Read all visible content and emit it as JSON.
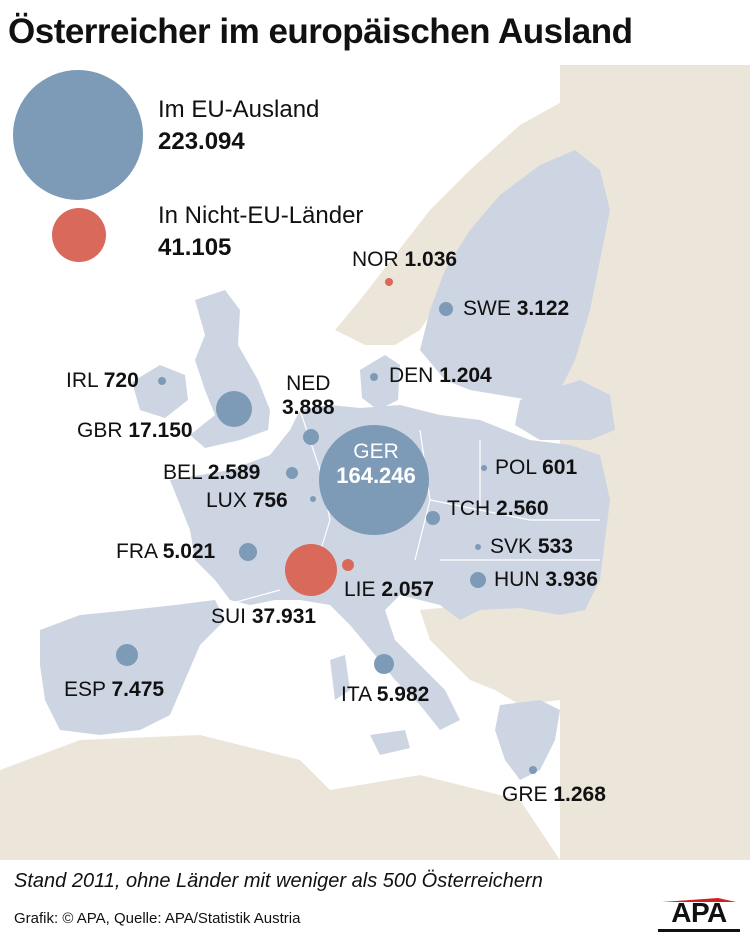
{
  "title": "Österreicher im europäischen Ausland",
  "legend": {
    "eu": {
      "label": "Im EU-Ausland",
      "value": "223.094",
      "color": "#7d9bb7"
    },
    "non_eu": {
      "label": "In Nicht-EU-Länder",
      "value": "41.105",
      "color": "#d9695a"
    }
  },
  "countries": [
    {
      "code": "NOR",
      "value": "1.036",
      "group": "non_eu"
    },
    {
      "code": "SWE",
      "value": "3.122",
      "group": "eu"
    },
    {
      "code": "IRL",
      "value": "720",
      "group": "eu"
    },
    {
      "code": "DEN",
      "value": "1.204",
      "group": "eu"
    },
    {
      "code": "NED",
      "value": "3.888",
      "group": "eu"
    },
    {
      "code": "GBR",
      "value": "17.150",
      "group": "eu"
    },
    {
      "code": "GER",
      "value": "164.246",
      "group": "eu"
    },
    {
      "code": "BEL",
      "value": "2.589",
      "group": "eu"
    },
    {
      "code": "POL",
      "value": "601",
      "group": "eu"
    },
    {
      "code": "LUX",
      "value": "756",
      "group": "eu"
    },
    {
      "code": "TCH",
      "value": "2.560",
      "group": "eu"
    },
    {
      "code": "FRA",
      "value": "5.021",
      "group": "eu"
    },
    {
      "code": "SVK",
      "value": "533",
      "group": "eu"
    },
    {
      "code": "HUN",
      "value": "3.936",
      "group": "eu"
    },
    {
      "code": "LIE",
      "value": "2.057",
      "group": "non_eu"
    },
    {
      "code": "SUI",
      "value": "37.931",
      "group": "non_eu"
    },
    {
      "code": "ESP",
      "value": "7.475",
      "group": "eu"
    },
    {
      "code": "ITA",
      "value": "5.982",
      "group": "eu"
    },
    {
      "code": "GRE",
      "value": "1.268",
      "group": "eu"
    }
  ],
  "colors": {
    "land_europe": "#cdd4e2",
    "land_other": "#ece6da",
    "sea": "#ffffff"
  },
  "footnote": "Stand 2011, ohne Länder mit weniger als 500 Österreichern",
  "credit": "Grafik: © APA, Quelle: APA/Statistik Austria",
  "logo_text": "APA"
}
